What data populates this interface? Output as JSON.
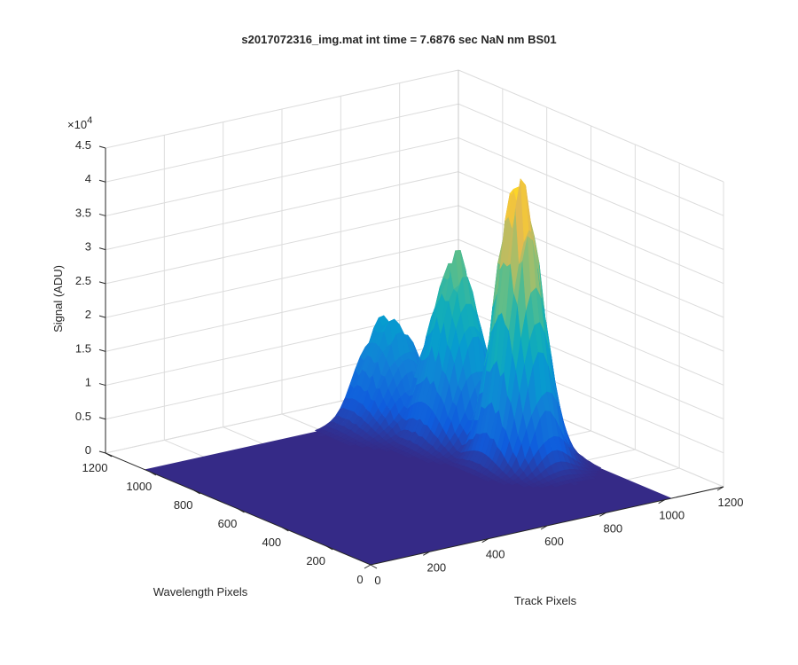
{
  "chart_data": {
    "type": "surface",
    "title": "s2017072316_img.mat int time = 7.6876 sec  NaN nm BS01",
    "xlabel": "Track Pixels",
    "ylabel": "Wavelength Pixels",
    "zlabel": "Signal (ADU)",
    "z_exponent_base": "×10",
    "z_exponent_power": "4",
    "xlim": [
      0,
      1200
    ],
    "ylim": [
      0,
      1200
    ],
    "zlim": [
      0,
      45000
    ],
    "x_ticks": [
      "0",
      "200",
      "400",
      "600",
      "800",
      "1000",
      "1200"
    ],
    "y_ticks": [
      "0",
      "200",
      "400",
      "600",
      "800",
      "1000",
      "1200"
    ],
    "z_ticks": [
      "0",
      "0.5",
      "1",
      "1.5",
      "2",
      "2.5",
      "3",
      "3.5",
      "4",
      "4.5"
    ],
    "x_extent": [
      0,
      1024
    ],
    "y_extent": [
      0,
      1024
    ],
    "grid": true,
    "colormap": "parula",
    "colors": {
      "surface_floor": "#352a87",
      "peak": "#f9fb0e",
      "grid": "#dcdcdc",
      "axis": "#262626"
    },
    "peaks": [
      {
        "track": 880,
        "wavelength": 500,
        "signal": 41000
      },
      {
        "track": 860,
        "wavelength": 760,
        "signal": 26000
      },
      {
        "track": 800,
        "wavelength": 980,
        "signal": 15000
      }
    ]
  }
}
